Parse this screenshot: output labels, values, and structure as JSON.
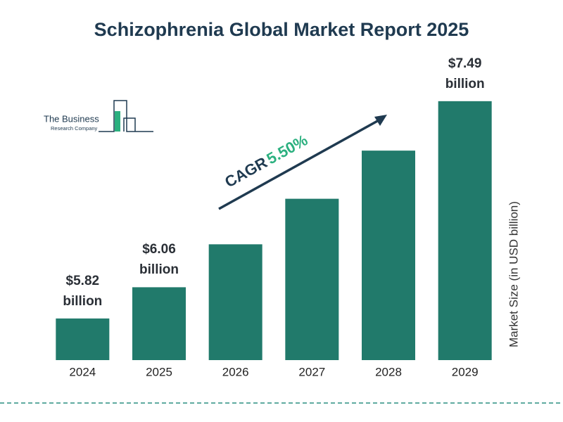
{
  "chart_data": {
    "type": "bar",
    "title": "Schizophrenia Global Market Report 2025",
    "categories": [
      "2024",
      "2025",
      "2026",
      "2027",
      "2028",
      "2029"
    ],
    "values": [
      5.82,
      6.06,
      6.39,
      6.74,
      7.11,
      7.49
    ],
    "value_labels": [
      "$5.82 billion",
      "$6.06 billion",
      null,
      null,
      null,
      "$7.49 billion"
    ],
    "color": "#217a6b",
    "ylim": [
      5.5,
      7.5
    ],
    "y_label": "Market Size (in USD billion)",
    "annotation": {
      "label": "CAGR",
      "value": "5.50%"
    }
  },
  "logo": {
    "line1": "The Business",
    "line2": "Research Company"
  }
}
